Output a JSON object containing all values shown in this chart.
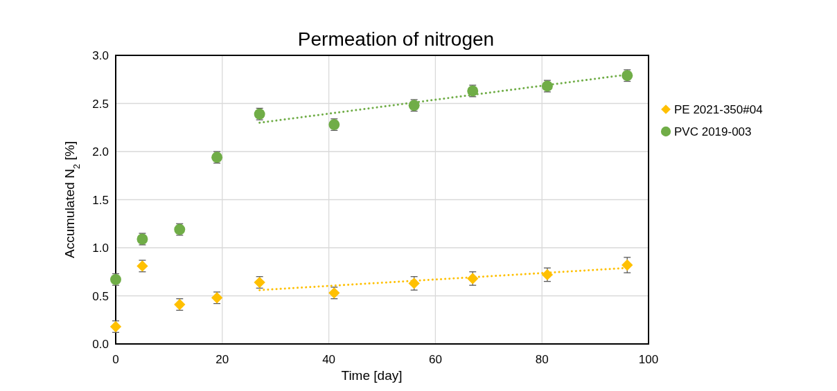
{
  "chart_data": {
    "type": "scatter",
    "title": "Permeation of nitrogen",
    "xlabel": "Time [day]",
    "ylabel": "Accumulated N$_{2}$ [%]",
    "xlim": [
      0,
      100
    ],
    "xticks": [
      0,
      20,
      40,
      60,
      80,
      100
    ],
    "ylim": [
      0,
      3
    ],
    "yticks": [
      {
        "value": 0,
        "label": "0.0"
      },
      {
        "value": 0.5,
        "label": "0.5"
      },
      {
        "value": 1,
        "label": "1.0"
      },
      {
        "value": 1.5,
        "label": "1.5"
      },
      {
        "value": 2,
        "label": "2.0"
      },
      {
        "value": 2.5,
        "label": "2.5"
      },
      {
        "value": 3,
        "label": "3.0"
      }
    ],
    "grid": true,
    "legend": "right",
    "series": [
      {
        "name": "PE 2021-350#04",
        "color": "#ffc000",
        "marker": "diamond",
        "x": [
          0,
          5,
          12,
          19,
          27,
          41,
          56,
          67,
          81,
          96
        ],
        "values": [
          0.18,
          0.81,
          0.41,
          0.48,
          0.64,
          0.53,
          0.63,
          0.68,
          0.72,
          0.82
        ],
        "errors": [
          0.06,
          0.06,
          0.06,
          0.06,
          0.06,
          0.06,
          0.07,
          0.07,
          0.07,
          0.08
        ]
      },
      {
        "name": "PVC 2019-003",
        "color": "#70ad47",
        "marker": "circle",
        "x": [
          0,
          5,
          12,
          19,
          27,
          41,
          56,
          67,
          81,
          96
        ],
        "values": [
          0.67,
          1.09,
          1.19,
          1.94,
          2.39,
          2.28,
          2.48,
          2.63,
          2.68,
          2.79
        ],
        "errors": [
          0.06,
          0.06,
          0.06,
          0.06,
          0.06,
          0.06,
          0.06,
          0.06,
          0.06,
          0.06
        ]
      },
      {
        "type": "line",
        "color": "#ffc000",
        "marker": "none",
        "line_style": "dotted",
        "x": [
          27,
          96
        ],
        "values": [
          0.56,
          0.79
        ]
      },
      {
        "type": "line",
        "color": "#70ad47",
        "marker": "none",
        "line_style": "dotted",
        "x": [
          27,
          96
        ],
        "values": [
          2.3,
          2.8
        ]
      }
    ]
  }
}
